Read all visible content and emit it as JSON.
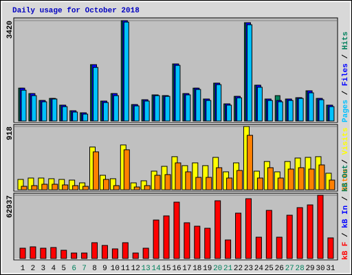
{
  "chart_data": [
    {
      "type": "bar",
      "title": "Daily usage for October 2018",
      "ylim": [
        0,
        3420
      ],
      "yticks": [
        3420
      ],
      "series": [
        {
          "name": "Hits",
          "color": "#00805c",
          "values": [
            1120,
            935,
            700,
            770,
            540,
            350,
            280,
            1920,
            680,
            935,
            3420,
            560,
            725,
            890,
            865,
            1945,
            935,
            1120,
            750,
            1290,
            585,
            840,
            3350,
            1220,
            750,
            865,
            750,
            795,
            1030,
            770,
            540
          ]
        },
        {
          "name": "Files",
          "color": "#0000ff",
          "values": [
            1120,
            935,
            700,
            770,
            540,
            350,
            280,
            1920,
            680,
            935,
            3420,
            560,
            725,
            890,
            865,
            1945,
            935,
            1120,
            750,
            1290,
            585,
            840,
            3350,
            1220,
            750,
            700,
            750,
            795,
            1030,
            770,
            540
          ]
        },
        {
          "name": "Pages",
          "color": "#00c0ff",
          "values": [
            1050,
            865,
            655,
            750,
            490,
            305,
            235,
            1825,
            630,
            865,
            3370,
            515,
            680,
            865,
            840,
            1895,
            890,
            1075,
            700,
            1240,
            540,
            790,
            3280,
            1150,
            700,
            655,
            700,
            770,
            960,
            725,
            490
          ]
        }
      ]
    },
    {
      "type": "bar",
      "ylim": [
        0,
        918
      ],
      "yticks": [
        918
      ],
      "series": [
        {
          "name": "Visits",
          "color": "#ffff00",
          "values": [
            150,
            170,
            170,
            160,
            150,
            140,
            100,
            620,
            210,
            160,
            650,
            100,
            130,
            270,
            340,
            480,
            350,
            390,
            350,
            470,
            260,
            390,
            918,
            270,
            410,
            260,
            410,
            460,
            470,
            480,
            240
          ]
        },
        {
          "name": "Sites",
          "color": "#ff8000",
          "values": [
            50,
            60,
            80,
            80,
            70,
            60,
            50,
            550,
            150,
            60,
            580,
            40,
            60,
            210,
            220,
            390,
            260,
            180,
            180,
            320,
            170,
            280,
            790,
            170,
            320,
            170,
            300,
            320,
            300,
            360,
            140
          ]
        }
      ]
    },
    {
      "type": "bar",
      "ylim": [
        0,
        62937
      ],
      "yticks": [
        62937
      ],
      "categories": [
        "1",
        "2",
        "3",
        "4",
        "5",
        "6",
        "7",
        "8",
        "9",
        "10",
        "11",
        "12",
        "13",
        "14",
        "15",
        "16",
        "17",
        "18",
        "19",
        "20",
        "21",
        "22",
        "23",
        "24",
        "25",
        "26",
        "27",
        "28",
        "29",
        "30",
        "31"
      ],
      "weekend": [
        5,
        6,
        12,
        13,
        19,
        20,
        26,
        27
      ],
      "weekend_color": "#00805c",
      "series": [
        {
          "name": "kB F",
          "color": "#ff0000",
          "values": [
            10260,
            11630,
            10260,
            10940,
            8210,
            5470,
            5470,
            15730,
            13000,
            9580,
            15730,
            5470,
            10260,
            38300,
            42410,
            56090,
            35570,
            32150,
            30100,
            57460,
            18470,
            45150,
            59510,
            21210,
            47880,
            21210,
            43090,
            50620,
            53350,
            62937,
            20520
          ]
        }
      ],
      "legend_only": [
        {
          "name": "kB In",
          "color": "#0000ff"
        },
        {
          "name": "kB Out",
          "color": "#00805c"
        }
      ]
    }
  ]
}
